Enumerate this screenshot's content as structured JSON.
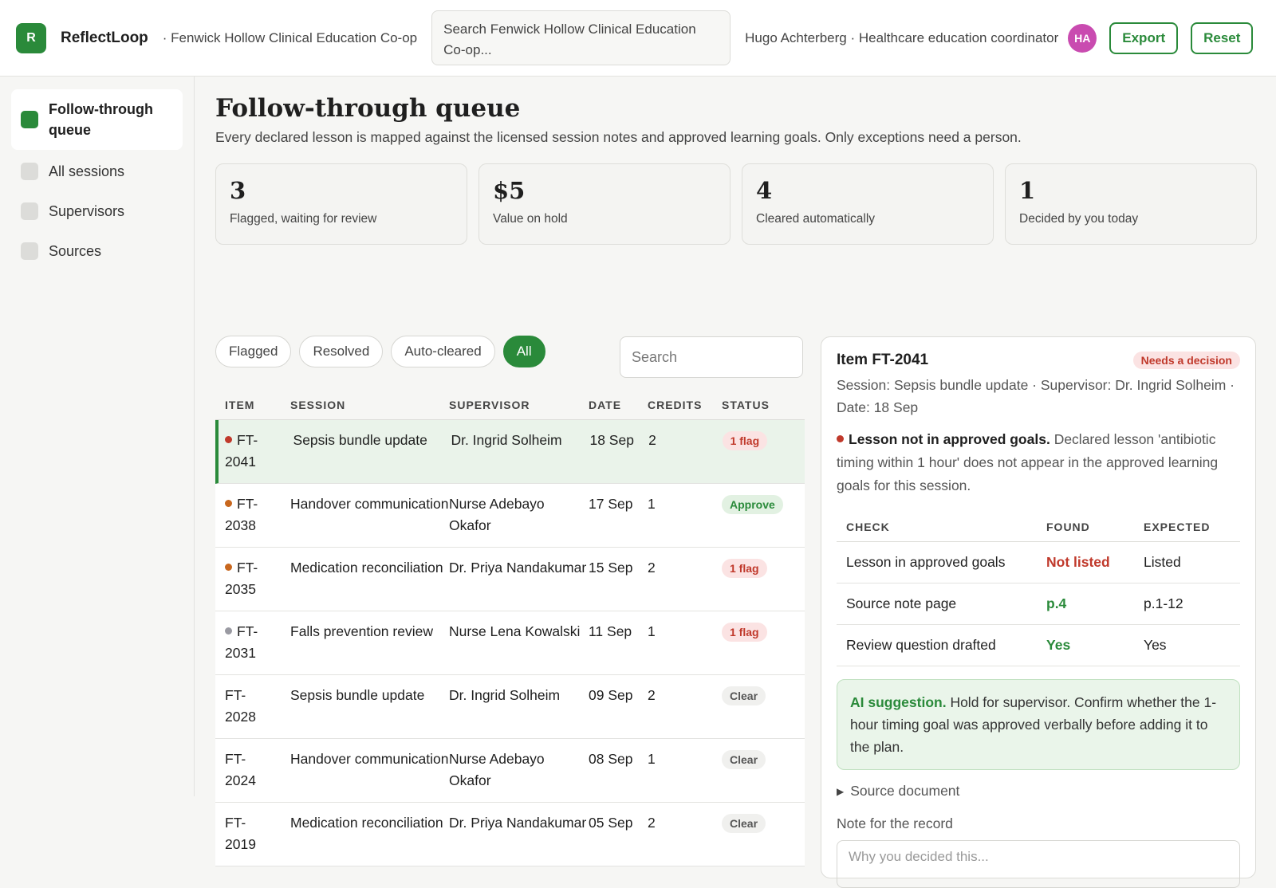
{
  "header": {
    "logo_letter": "R",
    "brand": "ReflectLoop",
    "org": "· Fenwick Hollow Clinical Education Co-op",
    "search_placeholder": "Search Fenwick Hollow Clinical Education Co-op...",
    "user": "Hugo Achterberg · Healthcare education coordinator",
    "avatar_initials": "HA",
    "export_label": "Export",
    "reset_label": "Reset"
  },
  "sidebar": {
    "items": [
      {
        "label": "Follow-through queue",
        "active": true
      },
      {
        "label": "All sessions",
        "active": false
      },
      {
        "label": "Supervisors",
        "active": false
      },
      {
        "label": "Sources",
        "active": false
      }
    ]
  },
  "main": {
    "title": "Follow-through queue",
    "subtitle": "Every declared lesson is mapped against the licensed session notes and approved learning goals. Only exceptions need a person.",
    "stats": [
      {
        "value": "3",
        "label": "Flagged, waiting for review"
      },
      {
        "value": "$5",
        "label": "Value on hold"
      },
      {
        "value": "4",
        "label": "Cleared automatically"
      },
      {
        "value": "1",
        "label": "Decided by you today"
      }
    ],
    "filters": [
      "Flagged",
      "Resolved",
      "Auto-cleared",
      "All"
    ],
    "active_filter": "All",
    "table_search_placeholder": "Search"
  },
  "table": {
    "columns": [
      "ITEM",
      "SESSION",
      "SUPERVISOR",
      "DATE",
      "CREDITS",
      "STATUS"
    ],
    "rows": [
      {
        "item": "FT-2041",
        "dot": "#c0392b",
        "session": "Sepsis bundle update",
        "supervisor": "Dr. Ingrid Solheim",
        "date": "18 Sep",
        "credits": "2",
        "status": "1 flag",
        "status_type": "flag",
        "selected": true
      },
      {
        "item": "FT-2038",
        "dot": "#c8671e",
        "session": "Handover communication",
        "supervisor": "Nurse Adebayo Okafor",
        "date": "17 Sep",
        "credits": "1",
        "status": "Approve",
        "status_type": "approve",
        "selected": false
      },
      {
        "item": "FT-2035",
        "dot": "#c8671e",
        "session": "Medication reconciliation",
        "supervisor": "Dr. Priya Nandakumar",
        "date": "15 Sep",
        "credits": "2",
        "status": "1 flag",
        "status_type": "flag",
        "selected": false
      },
      {
        "item": "FT-2031",
        "dot": "#9a9aa2",
        "session": "Falls prevention review",
        "supervisor": "Nurse Lena Kowalski",
        "date": "11 Sep",
        "credits": "1",
        "status": "1 flag",
        "status_type": "flag",
        "selected": false
      },
      {
        "item": "FT-2028",
        "dot": "",
        "session": "Sepsis bundle update",
        "supervisor": "Dr. Ingrid Solheim",
        "date": "09 Sep",
        "credits": "2",
        "status": "Clear",
        "status_type": "clear",
        "selected": false
      },
      {
        "item": "FT-2024",
        "dot": "",
        "session": "Handover communication",
        "supervisor": "Nurse Adebayo Okafor",
        "date": "08 Sep",
        "credits": "1",
        "status": "Clear",
        "status_type": "clear",
        "selected": false
      },
      {
        "item": "FT-2019",
        "dot": "",
        "session": "Medication reconciliation",
        "supervisor": "Dr. Priya Nandakumar",
        "date": "05 Sep",
        "credits": "2",
        "status": "Clear",
        "status_type": "clear",
        "selected": false
      }
    ]
  },
  "detail": {
    "title": "Item FT-2041",
    "badge": "Needs a decision",
    "meta": "Session: Sepsis bundle update · Supervisor: Dr. Ingrid Solheim · Date: 18 Sep",
    "finding_title": "Lesson not in approved goals.",
    "finding_text": "Declared lesson 'antibiotic timing within 1 hour' does not appear in the approved learning goals for this session.",
    "check_columns": [
      "CHECK",
      "FOUND",
      "EXPECTED"
    ],
    "checks": [
      {
        "check": "Lesson in approved goals",
        "found": "Not listed",
        "found_type": "red",
        "expected": "Listed"
      },
      {
        "check": "Source note page",
        "found": "p.4",
        "found_type": "green",
        "expected": "p.1-12"
      },
      {
        "check": "Review question drafted",
        "found": "Yes",
        "found_type": "green",
        "expected": "Yes"
      }
    ],
    "ai_title": "AI suggestion.",
    "ai_text": "Hold for supervisor. Confirm whether the 1-hour timing goal was approved verbally before adding it to the plan.",
    "source_label": "Source document",
    "note_label": "Note for the record",
    "note_placeholder": "Why you decided this..."
  }
}
